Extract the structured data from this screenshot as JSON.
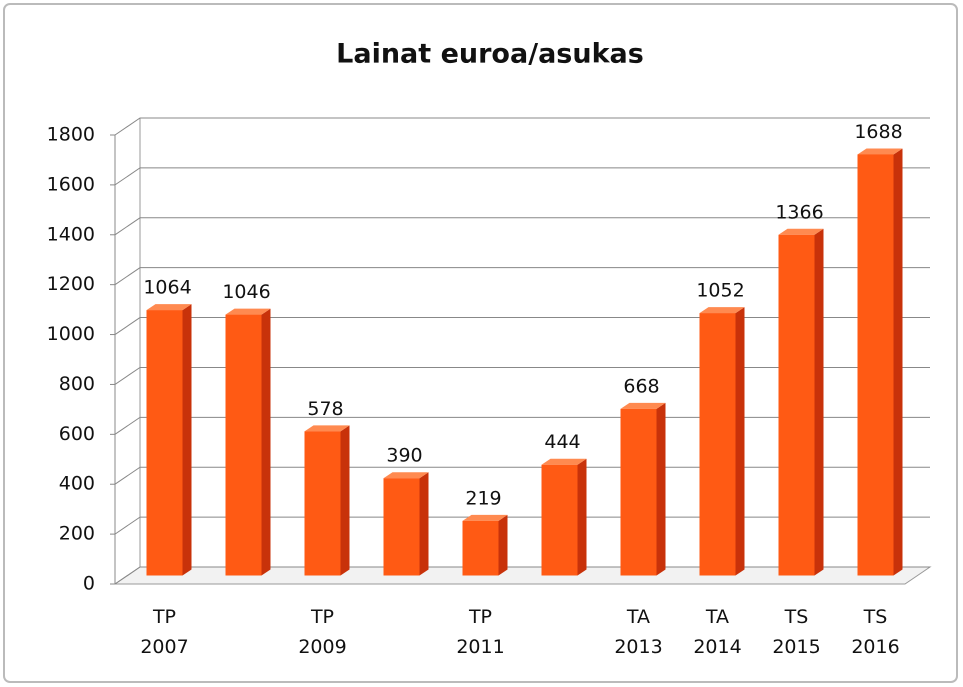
{
  "chart_data": {
    "type": "bar",
    "title": "Lainat euroa/asukas",
    "categories": [
      "TP\n2007",
      null,
      "TP\n2009",
      null,
      "TP\n2011",
      null,
      "TA\n2013",
      "TA\n2014",
      "TS\n2015",
      "TS\n2016"
    ],
    "values": [
      1064,
      1046,
      578,
      390,
      219,
      444,
      668,
      1052,
      1366,
      1688
    ],
    "color": "#ff5a14",
    "ylim": [
      0,
      1800
    ],
    "yticks": [
      0,
      200,
      400,
      600,
      800,
      1000,
      1200,
      1400,
      1600,
      1800
    ],
    "grid": true
  }
}
